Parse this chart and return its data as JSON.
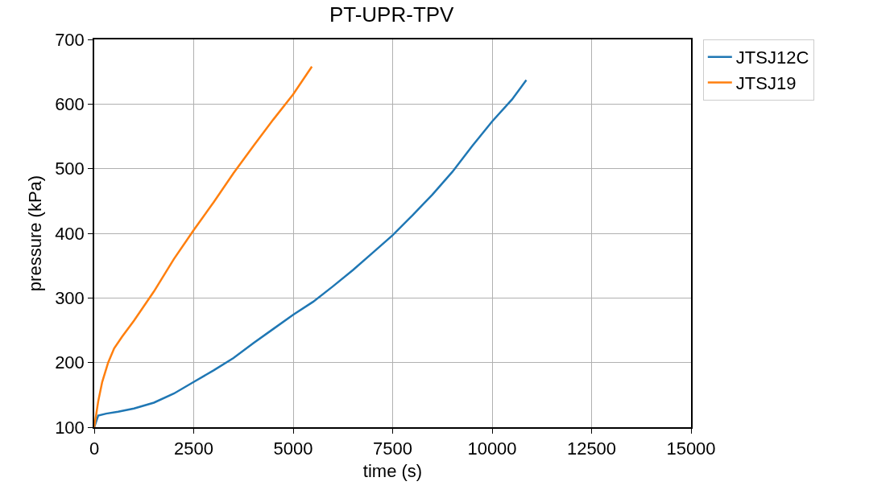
{
  "chart_data": {
    "type": "line",
    "title": "PT-UPR-TPV",
    "xlabel": "time (s)",
    "ylabel": "pressure (kPa)",
    "xlim": [
      0,
      15000
    ],
    "xticks": [
      0,
      2500,
      5000,
      7500,
      10000,
      12500,
      15000
    ],
    "ylim": [
      100,
      700
    ],
    "yticks": [
      100,
      200,
      300,
      400,
      500,
      600,
      700
    ],
    "grid": true,
    "legend": "top right",
    "line_style": "solid",
    "marker": "none",
    "series": [
      {
        "name": "JTSJ12C",
        "color": "#1f77b4",
        "x": [
          0,
          100,
          300,
          600,
          1000,
          1500,
          2000,
          2500,
          3000,
          3500,
          4000,
          4500,
          5000,
          5500,
          6000,
          6500,
          7000,
          7500,
          8000,
          8500,
          9000,
          9500,
          10000,
          10500,
          10860
        ],
        "values": [
          100,
          118,
          121,
          124,
          129,
          138,
          152,
          170,
          188,
          207,
          230,
          252,
          274,
          294,
          318,
          343,
          370,
          397,
          428,
          460,
          495,
          535,
          573,
          607,
          637
        ]
      },
      {
        "name": "JTSJ19",
        "color": "#ff7f0e",
        "x": [
          0,
          100,
          200,
          350,
          500,
          700,
          1000,
          1500,
          2000,
          2500,
          3000,
          3500,
          4000,
          4500,
          5000,
          5470
        ],
        "values": [
          100,
          140,
          170,
          200,
          222,
          240,
          265,
          310,
          360,
          405,
          448,
          493,
          535,
          576,
          615,
          658
        ]
      }
    ]
  }
}
